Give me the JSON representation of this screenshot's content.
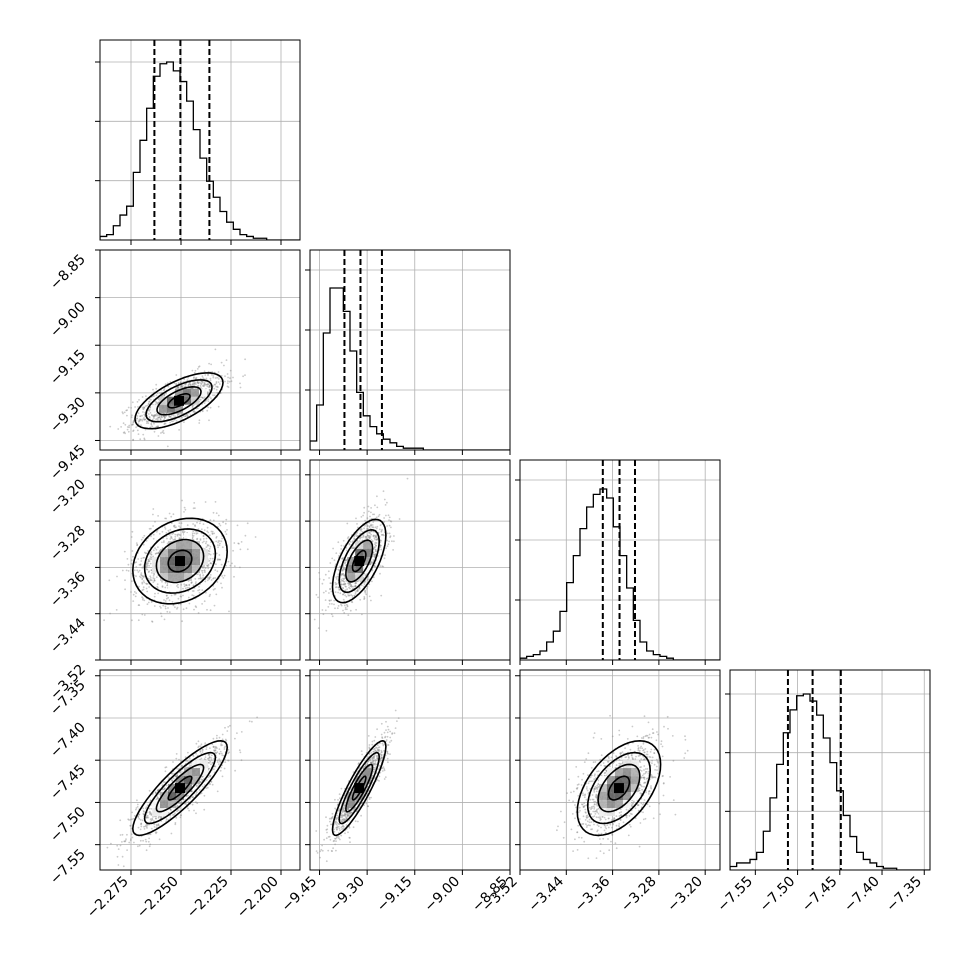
{
  "chart_data": {
    "type": "corner",
    "title": "",
    "grid": true,
    "axis_ticks": [
      [
        "−2.275",
        "−2.250",
        "−2.225",
        "−2.200"
      ],
      [
        "−9.45",
        "−9.30",
        "−9.15",
        "−9.00",
        "−8.85"
      ],
      [
        "−3.52",
        "−3.44",
        "−3.36",
        "−3.28",
        "−3.20"
      ],
      [
        "−7.55",
        "−7.50",
        "−7.45",
        "−7.40",
        "−7.35"
      ]
    ],
    "parameters": [
      {
        "range": [
          -2.2905,
          -2.1905
        ],
        "quantiles": [
          -2.2633,
          -2.2503,
          -2.2358
        ],
        "histogram": [
          0.02,
          0.03,
          0.08,
          0.14,
          0.19,
          0.38,
          0.56,
          0.74,
          0.92,
          0.99,
          1.0,
          0.95,
          0.89,
          0.78,
          0.62,
          0.46,
          0.33,
          0.24,
          0.16,
          0.1,
          0.06,
          0.03,
          0.02,
          0.01,
          0.01,
          0.0,
          0.0,
          0.0,
          0.0,
          0.0
        ],
        "histogram_peak_fraction": 0.89
      },
      {
        "range": [
          -9.48,
          -8.85
        ],
        "quantiles": [
          -9.3715,
          -9.321,
          -9.2534
        ],
        "histogram": [
          0.05,
          0.25,
          0.65,
          0.9,
          0.9,
          0.77,
          0.55,
          0.32,
          0.19,
          0.13,
          0.09,
          0.06,
          0.04,
          0.02,
          0.01,
          0.01,
          0.01,
          0.0,
          0.0,
          0.0,
          0.0,
          0.0,
          0.0,
          0.0,
          0.0,
          0.0,
          0.0,
          0.0,
          0.0,
          0.0
        ],
        "histogram_peak_fraction": 0.9
      },
      {
        "range": [
          -3.52,
          -3.1744
        ],
        "quantiles": [
          -3.3769,
          -3.348,
          -3.3213
        ],
        "histogram": [
          0.01,
          0.02,
          0.03,
          0.05,
          0.1,
          0.16,
          0.27,
          0.43,
          0.58,
          0.73,
          0.85,
          0.92,
          0.95,
          0.9,
          0.74,
          0.58,
          0.4,
          0.22,
          0.1,
          0.05,
          0.03,
          0.02,
          0.01,
          0.0,
          0.0,
          0.0,
          0.0,
          0.0,
          0.0,
          0.0
        ],
        "histogram_peak_fraction": 0.9
      },
      {
        "range": [
          -7.58,
          -7.3432
        ],
        "quantiles": [
          -7.5114,
          -7.4822,
          -7.4488
        ],
        "histogram": [
          0.02,
          0.04,
          0.04,
          0.06,
          0.1,
          0.22,
          0.41,
          0.6,
          0.78,
          0.91,
          0.99,
          1.0,
          0.96,
          0.88,
          0.75,
          0.61,
          0.45,
          0.31,
          0.19,
          0.1,
          0.06,
          0.04,
          0.02,
          0.01,
          0.01,
          0.0,
          0.0,
          0.0,
          0.0,
          0.0
        ],
        "histogram_peak_fraction": 0.88
      }
    ],
    "pairs": [
      {
        "row": 1,
        "col": 0,
        "mean": [
          -2.251,
          -9.325
        ],
        "sd": [
          0.011,
          0.044
        ],
        "corr": 0.65
      },
      {
        "row": 2,
        "col": 0,
        "mean": [
          -2.2505,
          -3.349
        ],
        "sd": [
          0.0118,
          0.037
        ],
        "corr": 0.22
      },
      {
        "row": 2,
        "col": 1,
        "mean": [
          -9.325,
          -3.349
        ],
        "sd": [
          0.042,
          0.036
        ],
        "corr": 0.62
      },
      {
        "row": 3,
        "col": 0,
        "mean": [
          -2.2505,
          -7.483
        ],
        "sd": [
          0.0118,
          0.028
        ],
        "corr": 0.86
      },
      {
        "row": 3,
        "col": 1,
        "mean": [
          -9.325,
          -7.483
        ],
        "sd": [
          0.042,
          0.028
        ],
        "corr": 0.88
      },
      {
        "row": 3,
        "col": 2,
        "mean": [
          -3.349,
          -7.483
        ],
        "sd": [
          0.036,
          0.028
        ],
        "corr": 0.5
      }
    ],
    "contour_levels_sigma": [
      0.5,
      1.0,
      1.5,
      2.0
    ]
  }
}
